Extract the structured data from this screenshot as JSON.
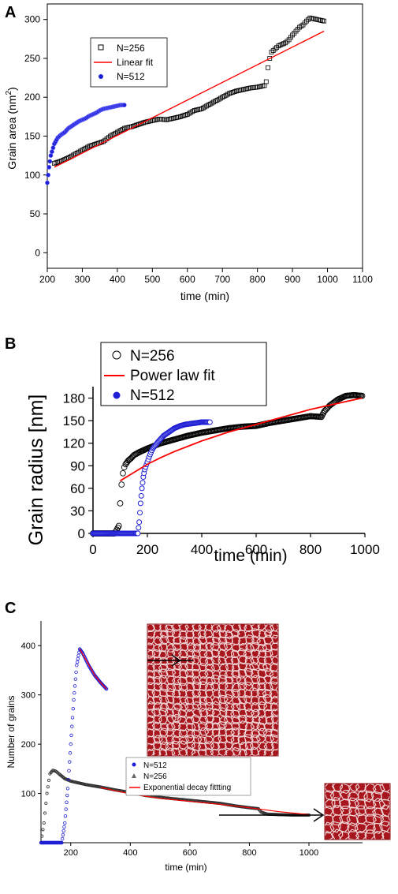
{
  "panels": [
    {
      "letter": "A"
    },
    {
      "letter": "B"
    },
    {
      "letter": "C"
    }
  ],
  "chart_data": [
    {
      "type": "scatter",
      "xlabel": "time (min)",
      "ylabel_main": "Grain area (nm",
      "ylabel_sup": "2",
      "ylabel_end": ")",
      "xlim": [
        200,
        1100
      ],
      "ylim": [
        -20,
        320
      ],
      "xticks": [
        200,
        300,
        400,
        500,
        600,
        700,
        800,
        900,
        1000,
        1100
      ],
      "yticks": [
        0,
        50,
        100,
        150,
        200,
        250,
        300
      ],
      "legend": [
        "N=256",
        "Linear fit",
        "N=512"
      ],
      "colors": {
        "n256": "#000000",
        "fit": "#ff0000",
        "n512": "#1f1fd6"
      },
      "series": [
        {
          "name": "N=256",
          "x": [
            220,
            240,
            260,
            280,
            300,
            320,
            340,
            360,
            380,
            400,
            420,
            440,
            460,
            480,
            500,
            520,
            540,
            560,
            580,
            600,
            620,
            640,
            660,
            680,
            700,
            720,
            740,
            760,
            780,
            800,
            820,
            825,
            830,
            835,
            840,
            850,
            860,
            870,
            880,
            890,
            900,
            910,
            920,
            930,
            940,
            950,
            960,
            970,
            980,
            990
          ],
          "y": [
            115,
            118,
            122,
            127,
            132,
            137,
            140,
            143,
            150,
            155,
            160,
            162,
            165,
            168,
            170,
            172,
            171,
            173,
            175,
            178,
            183,
            185,
            190,
            195,
            200,
            205,
            208,
            210,
            212,
            213,
            215,
            220,
            238,
            250,
            258,
            262,
            266,
            268,
            270,
            274,
            280,
            285,
            290,
            293,
            298,
            302,
            301,
            300,
            299,
            298
          ]
        },
        {
          "name": "Linear fit",
          "x": [
            220,
            990
          ],
          "y": [
            110,
            285
          ]
        },
        {
          "name": "N=512",
          "x": [
            200,
            205,
            210,
            220,
            230,
            240,
            250,
            260,
            270,
            280,
            290,
            300,
            310,
            320,
            330,
            340,
            350,
            360,
            370,
            380,
            390,
            400,
            410,
            420
          ],
          "y": [
            90,
            110,
            125,
            140,
            148,
            152,
            155,
            160,
            163,
            166,
            169,
            171,
            173,
            176,
            178,
            180,
            183,
            185,
            186,
            187,
            188,
            189,
            190,
            190
          ]
        }
      ]
    },
    {
      "type": "scatter",
      "xlabel": "time (min)",
      "ylabel": "Grain radius [nm]",
      "xlim": [
        0,
        1000
      ],
      "ylim": [
        0,
        190
      ],
      "xticks": [
        0,
        200,
        400,
        600,
        800,
        1000
      ],
      "yticks": [
        0,
        30,
        60,
        90,
        120,
        150,
        180
      ],
      "legend": [
        "N=256",
        "Power law fit",
        "N=512"
      ],
      "colors": {
        "n256": "#000000",
        "fit": "#ff0000",
        "n512": "#1f1fd6"
      },
      "series": [
        {
          "name": "N=256",
          "x": [
            0,
            40,
            80,
            95,
            100,
            105,
            110,
            115,
            120,
            130,
            140,
            150,
            170,
            200,
            250,
            300,
            350,
            400,
            450,
            500,
            550,
            600,
            650,
            700,
            750,
            800,
            840,
            850,
            870,
            900,
            930,
            960,
            990
          ],
          "y": [
            0,
            0,
            0,
            10,
            40,
            65,
            80,
            88,
            92,
            97,
            100,
            104,
            108,
            113,
            120,
            125,
            130,
            134,
            137,
            140,
            142,
            143,
            147,
            150,
            153,
            156,
            155,
            162,
            170,
            178,
            183,
            184,
            183
          ]
        },
        {
          "name": "Power law fit",
          "x": [
            100,
            150,
            200,
            250,
            300,
            350,
            400,
            450,
            500,
            550,
            600,
            650,
            700,
            750,
            800,
            850,
            900,
            950,
            990
          ],
          "y": [
            70,
            81,
            92,
            101,
            109,
            116,
            123,
            129,
            135,
            140,
            145,
            150,
            155,
            160,
            165,
            169,
            173,
            177,
            180
          ]
        },
        {
          "name": "N=512",
          "x": [
            0,
            50,
            100,
            150,
            165,
            170,
            175,
            180,
            185,
            190,
            200,
            210,
            220,
            240,
            260,
            280,
            300,
            320,
            340,
            360,
            380,
            400,
            420,
            430
          ],
          "y": [
            0,
            0,
            0,
            0,
            0,
            15,
            40,
            60,
            75,
            85,
            95,
            105,
            113,
            122,
            130,
            135,
            140,
            143,
            145,
            146,
            147,
            148,
            148,
            148
          ]
        }
      ]
    },
    {
      "type": "scatter",
      "xlabel": "time (min)",
      "ylabel": "Number of grains",
      "xlim": [
        100,
        1180
      ],
      "ylim": [
        0,
        450
      ],
      "xticks": [
        200,
        400,
        600,
        800,
        1000
      ],
      "yticks": [
        100,
        200,
        300,
        400
      ],
      "legend": [
        "N=512",
        "N=256",
        "Exponential decay fittting"
      ],
      "colors": {
        "n512": "#1f1fd6",
        "n256": "#444444",
        "fit": "#ff0000"
      },
      "series": [
        {
          "name": "N=512",
          "x": [
            100,
            170,
            180,
            190,
            200,
            210,
            220,
            230,
            240,
            260,
            280,
            300,
            320
          ],
          "y": [
            0,
            0,
            40,
            110,
            200,
            290,
            360,
            393,
            385,
            360,
            340,
            325,
            312
          ]
        },
        {
          "name": "N=256",
          "x": [
            100,
            110,
            120,
            130,
            140,
            150,
            160,
            180,
            200,
            250,
            300,
            350,
            400,
            450,
            500,
            550,
            600,
            650,
            700,
            750,
            800,
            830,
            840,
            860,
            900,
            950,
            1000
          ],
          "y": [
            0,
            40,
            100,
            140,
            147,
            145,
            140,
            130,
            125,
            118,
            113,
            107,
            102,
            96,
            92,
            89,
            86,
            83,
            80,
            75,
            71,
            69,
            62,
            58,
            57,
            56,
            56
          ]
        },
        {
          "name": "Exponential decay fittting",
          "x": [
            230,
            260,
            280,
            300,
            320,
            200,
            300,
            400,
            500,
            600,
            700,
            800,
            900,
            1000
          ],
          "y": [
            393,
            362,
            340,
            325,
            312,
            null,
            112,
            99,
            90,
            84,
            78,
            71,
            63,
            57
          ]
        }
      ]
    }
  ]
}
